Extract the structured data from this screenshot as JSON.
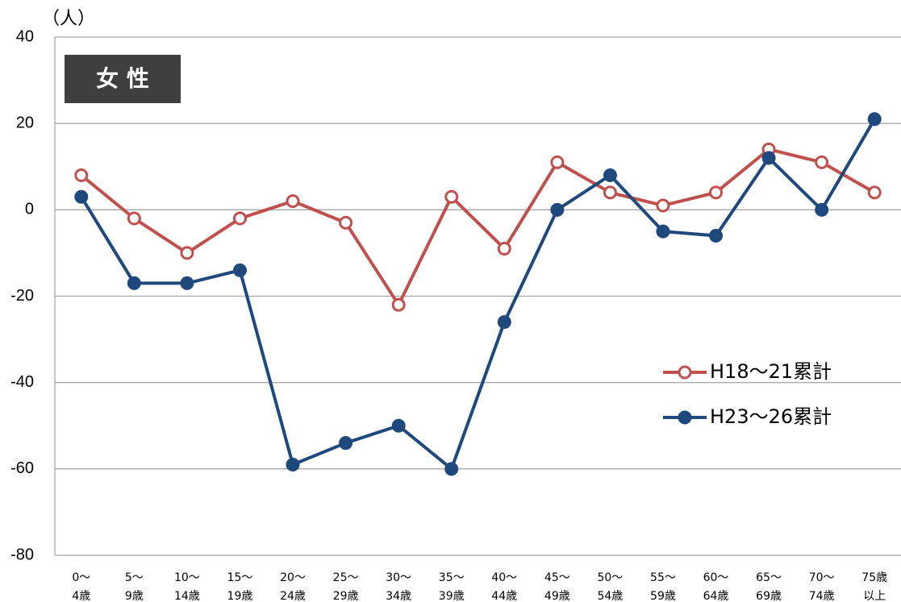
{
  "chart_data": {
    "type": "line",
    "title": "女 性",
    "y_label": "（人）",
    "categories": [
      [
        "0～",
        "4歳"
      ],
      [
        "5～",
        "9歳"
      ],
      [
        "10～",
        "14歳"
      ],
      [
        "15～",
        "19歳"
      ],
      [
        "20～",
        "24歳"
      ],
      [
        "25～",
        "29歳"
      ],
      [
        "30～",
        "34歳"
      ],
      [
        "35～",
        "39歳"
      ],
      [
        "40～",
        "44歳"
      ],
      [
        "45～",
        "49歳"
      ],
      [
        "50～",
        "54歳"
      ],
      [
        "55～",
        "59歳"
      ],
      [
        "60～",
        "64歳"
      ],
      [
        "65～",
        "69歳"
      ],
      [
        "70～",
        "74歳"
      ],
      [
        "75歳",
        "以上"
      ]
    ],
    "series": [
      {
        "name": "H18～21累計",
        "color": "#c0504d",
        "marker": "open",
        "values": [
          8,
          -2,
          -10,
          -2,
          2,
          -3,
          -22,
          3,
          -9,
          11,
          4,
          1,
          4,
          14,
          11,
          4
        ]
      },
      {
        "name": "H23～26累計",
        "color": "#1f497d",
        "marker": "filled",
        "values": [
          3,
          -17,
          -17,
          -14,
          -59,
          -54,
          -50,
          -60,
          -26,
          0,
          8,
          -5,
          -6,
          12,
          0,
          21
        ]
      }
    ],
    "ylim": [
      -80,
      40
    ],
    "yticks": [
      40,
      20,
      0,
      -20,
      -40,
      -60,
      -80
    ],
    "grid": true
  }
}
